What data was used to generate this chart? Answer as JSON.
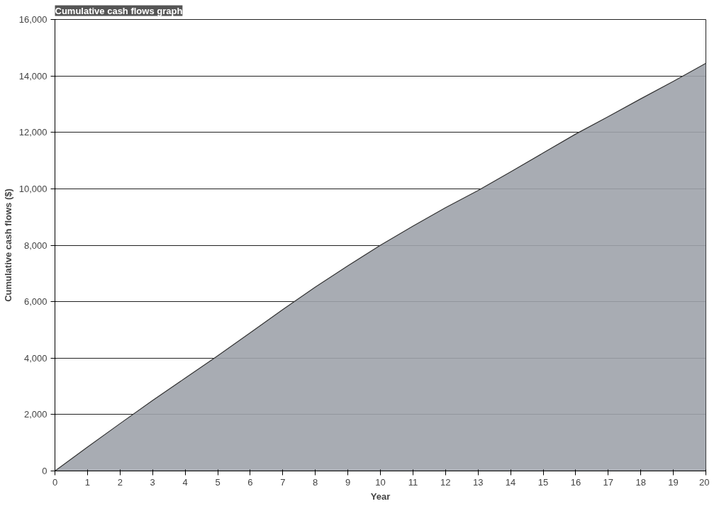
{
  "chart_data": {
    "type": "area",
    "title": "Cumulative cash flows graph",
    "xlabel": "Year",
    "ylabel": "Cumulative cash flows ($)",
    "x": [
      0,
      1,
      2,
      3,
      4,
      5,
      6,
      7,
      8,
      9,
      10,
      11,
      12,
      13,
      14,
      15,
      16,
      17,
      18,
      19,
      20
    ],
    "series": [
      {
        "color": "#9ea3ab",
        "values": [
          0,
          850,
          1680,
          2500,
          3290,
          4080,
          4900,
          5720,
          6520,
          7270,
          8000,
          8680,
          9330,
          9940,
          10600,
          11270,
          11940,
          12560,
          13190,
          13810,
          14450
        ]
      }
    ],
    "xlim": [
      0,
      20
    ],
    "ylim": [
      0,
      16000
    ],
    "xticks": [
      0,
      1,
      2,
      3,
      4,
      5,
      6,
      7,
      8,
      9,
      10,
      11,
      12,
      13,
      14,
      15,
      16,
      17,
      18,
      19,
      20
    ],
    "yticks": [
      0,
      {
        "value": 2000,
        "label": "2,000"
      },
      {
        "value": 4000,
        "label": "4,000"
      },
      {
        "value": 6000,
        "label": "6,000"
      },
      {
        "value": 8000,
        "label": "8,000"
      },
      {
        "value": 10000,
        "label": "10,000"
      },
      {
        "value": 12000,
        "label": "12,000"
      },
      {
        "value": 14000,
        "label": "14,000"
      },
      {
        "value": 16000,
        "label": "16,000"
      }
    ],
    "grid": "y"
  }
}
